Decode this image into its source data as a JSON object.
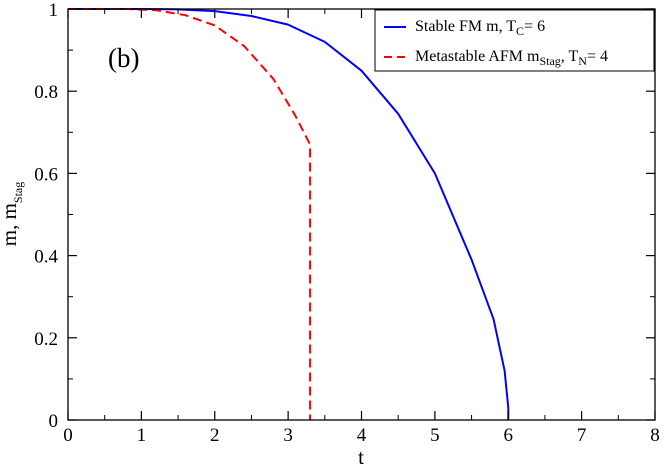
{
  "chart_data": {
    "type": "line",
    "annotation": "(b)",
    "xlabel": "t",
    "ylabel": {
      "main": "m,  m",
      "sub": "Stag"
    },
    "xlim": [
      0,
      8
    ],
    "ylim": [
      0,
      1
    ],
    "xticks": [
      "0",
      "1",
      "2",
      "3",
      "4",
      "5",
      "6",
      "7",
      "8"
    ],
    "yticks": [
      "0",
      "0.2",
      "0.4",
      "0.6",
      "0.8",
      "1"
    ],
    "grid": false,
    "legend_position": "top-right",
    "series": [
      {
        "name": "stable",
        "legend": {
          "text1": "Stable FM m, T",
          "sub1": "C",
          "text2": "= 6",
          "sub2": "",
          "text3": ""
        },
        "color": "#0000ff",
        "style": "solid",
        "x": [
          0,
          1,
          1.5,
          2,
          2.5,
          3,
          3.5,
          4,
          4.5,
          5,
          5.5,
          5.8,
          5.95,
          6.0,
          6.0
        ],
        "y": [
          1.0,
          1.0,
          0.999,
          0.995,
          0.983,
          0.962,
          0.92,
          0.85,
          0.745,
          0.6,
          0.39,
          0.245,
          0.12,
          0.03,
          0.0
        ]
      },
      {
        "name": "metastable",
        "legend": {
          "text1": "Metastable AFM m",
          "sub1": "Stag",
          "text2": ", T",
          "sub2": "N",
          "text3": "= 4"
        },
        "color": "#ff0000",
        "style": "dashed",
        "x": [
          0,
          0.8,
          1.2,
          1.6,
          2.0,
          2.4,
          2.8,
          3.1,
          3.3,
          3.3,
          3.3
        ],
        "y": [
          1.0,
          1.0,
          0.997,
          0.985,
          0.96,
          0.91,
          0.83,
          0.74,
          0.67,
          0.62,
          0.0
        ]
      }
    ]
  }
}
